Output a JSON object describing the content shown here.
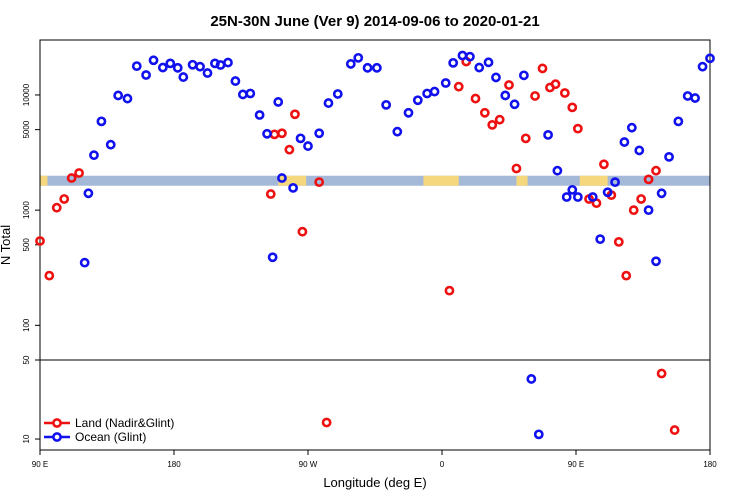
{
  "chart_data": {
    "type": "scatter",
    "title": "25N-30N June (Ver 9)   2014-09-06 to 2020-01-21",
    "xlabel": "Longitude (deg E)",
    "ylabel": "N Total",
    "x_axis": {
      "range_index": [
        0,
        360
      ],
      "ticks": [
        {
          "pos": 0,
          "label": "90 E"
        },
        {
          "pos": 72,
          "label": "180"
        },
        {
          "pos": 144,
          "label": "90 W"
        },
        {
          "pos": 216,
          "label": "0"
        },
        {
          "pos": 288,
          "label": "90 E"
        },
        {
          "pos": 360,
          "label": "180"
        }
      ]
    },
    "y_axis_upper": {
      "scale": "log",
      "range": [
        50,
        30000
      ],
      "ticks": [
        {
          "value": 50,
          "label": "50"
        },
        {
          "value": 100,
          "label": "100"
        },
        {
          "value": 500,
          "label": "500"
        },
        {
          "value": 1000,
          "label": "1000"
        },
        {
          "value": 5000,
          "label": "5000"
        },
        {
          "value": 10000,
          "label": "10000"
        }
      ]
    },
    "y_axis_lower": {
      "scale": "log",
      "range": [
        8,
        50
      ],
      "ticks": [
        {
          "value": 10,
          "label": "10"
        },
        {
          "value": 50,
          "label": "50"
        }
      ]
    },
    "surface_band": {
      "value": 1800,
      "land_color": "#f5d77e",
      "ocean_color": "#a4b9d8",
      "land_segments": [
        [
          0,
          4
        ],
        [
          128,
          143
        ],
        [
          206,
          225
        ],
        [
          256,
          262
        ],
        [
          290,
          305
        ]
      ]
    },
    "series": [
      {
        "name": "Land (Nadir&Glint)",
        "color": "#ee1111",
        "points": [
          [
            0,
            540
          ],
          [
            5,
            270
          ],
          [
            9,
            1050
          ],
          [
            13,
            1250
          ],
          [
            17,
            1900
          ],
          [
            21,
            2100
          ],
          [
            124,
            1380
          ],
          [
            126,
            4550
          ],
          [
            130,
            4650
          ],
          [
            134,
            3350
          ],
          [
            137,
            6800
          ],
          [
            141,
            650
          ],
          [
            150,
            1750
          ],
          [
            154,
            14
          ],
          [
            220,
            200
          ],
          [
            225,
            11800
          ],
          [
            229,
            19500
          ],
          [
            234,
            9300
          ],
          [
            239,
            7000
          ],
          [
            243,
            5500
          ],
          [
            247,
            6100
          ],
          [
            252,
            12200
          ],
          [
            256,
            2300
          ],
          [
            261,
            4200
          ],
          [
            266,
            9800
          ],
          [
            270,
            17000
          ],
          [
            274,
            11600
          ],
          [
            277,
            12400
          ],
          [
            282,
            10400
          ],
          [
            286,
            7800
          ],
          [
            289,
            5100
          ],
          [
            295,
            1250
          ],
          [
            299,
            1150
          ],
          [
            303,
            2500
          ],
          [
            307,
            1350
          ],
          [
            311,
            530
          ],
          [
            315,
            270
          ],
          [
            319,
            1000
          ],
          [
            323,
            1250
          ],
          [
            327,
            1850
          ],
          [
            331,
            2200
          ],
          [
            334,
            38
          ],
          [
            341,
            12
          ]
        ]
      },
      {
        "name": "Ocean (Glint)",
        "color": "#1111ee",
        "points": [
          [
            24,
            350
          ],
          [
            26,
            1400
          ],
          [
            29,
            3000
          ],
          [
            33,
            5900
          ],
          [
            38,
            3700
          ],
          [
            42,
            9900
          ],
          [
            47,
            9300
          ],
          [
            52,
            17800
          ],
          [
            57,
            14900
          ],
          [
            61,
            20000
          ],
          [
            66,
            17300
          ],
          [
            70,
            18800
          ],
          [
            74,
            17200
          ],
          [
            77,
            14300
          ],
          [
            82,
            18300
          ],
          [
            86,
            17600
          ],
          [
            90,
            15500
          ],
          [
            94,
            18800
          ],
          [
            97,
            18200
          ],
          [
            101,
            19100
          ],
          [
            105,
            13200
          ],
          [
            109,
            10100
          ],
          [
            113,
            10300
          ],
          [
            118,
            6700
          ],
          [
            122,
            4600
          ],
          [
            125,
            390
          ],
          [
            128,
            8700
          ],
          [
            130,
            1900
          ],
          [
            136,
            1560
          ],
          [
            140,
            4200
          ],
          [
            144,
            3600
          ],
          [
            150,
            4650
          ],
          [
            155,
            8500
          ],
          [
            160,
            10200
          ],
          [
            167,
            18600
          ],
          [
            171,
            21000
          ],
          [
            176,
            17200
          ],
          [
            181,
            17200
          ],
          [
            186,
            8200
          ],
          [
            192,
            4800
          ],
          [
            198,
            7000
          ],
          [
            203,
            9000
          ],
          [
            208,
            10300
          ],
          [
            212,
            10700
          ],
          [
            218,
            12700
          ],
          [
            222,
            19000
          ],
          [
            227,
            22000
          ],
          [
            231,
            21500
          ],
          [
            236,
            17300
          ],
          [
            241,
            19200
          ],
          [
            245,
            14200
          ],
          [
            250,
            9900
          ],
          [
            255,
            8300
          ],
          [
            260,
            14800
          ],
          [
            264,
            34
          ],
          [
            268,
            11
          ],
          [
            273,
            4500
          ],
          [
            278,
            2200
          ],
          [
            283,
            1300
          ],
          [
            286,
            1500
          ],
          [
            289,
            1300
          ],
          [
            297,
            1300
          ],
          [
            301,
            560
          ],
          [
            305,
            1430
          ],
          [
            309,
            1750
          ],
          [
            314,
            3900
          ],
          [
            318,
            5200
          ],
          [
            322,
            3300
          ],
          [
            327,
            1000
          ],
          [
            331,
            360
          ],
          [
            334,
            1400
          ],
          [
            338,
            2900
          ],
          [
            343,
            5900
          ],
          [
            348,
            9800
          ],
          [
            352,
            9400
          ],
          [
            356,
            17600
          ],
          [
            360,
            20800
          ]
        ]
      }
    ]
  }
}
